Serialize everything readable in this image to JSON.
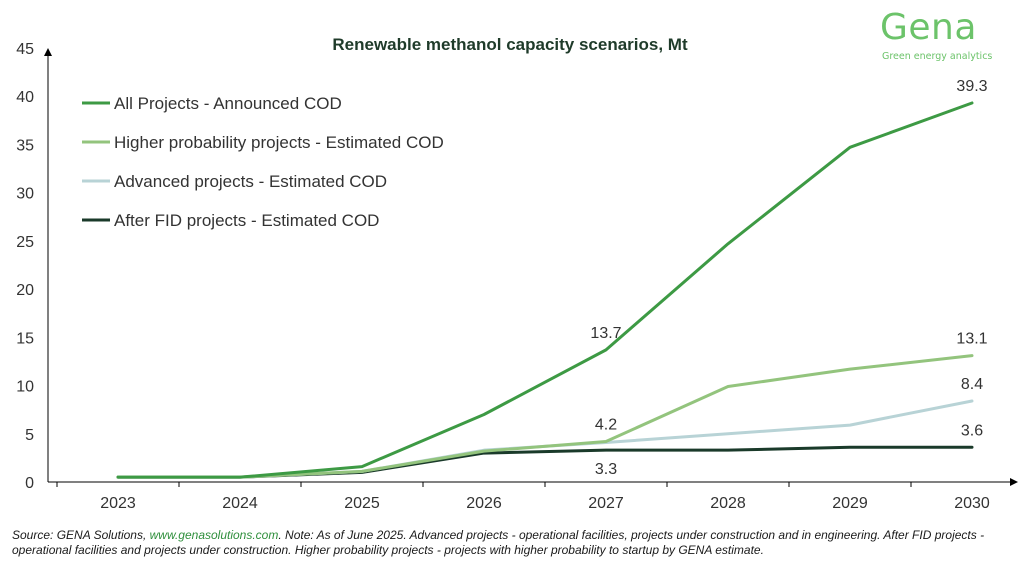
{
  "chart_data": {
    "type": "line",
    "title": "Renewable methanol capacity scenarios, Mt",
    "xlabel": "",
    "ylabel": "",
    "categories": [
      "2023",
      "2024",
      "2025",
      "2026",
      "2027",
      "2028",
      "2029",
      "2030"
    ],
    "ylim": [
      0,
      45
    ],
    "yticks": [
      0,
      5,
      10,
      15,
      20,
      25,
      30,
      35,
      40,
      45
    ],
    "grid": false,
    "legend_position": "top-left",
    "series": [
      {
        "name": "All Projects - Announced COD",
        "color": "#3d9a44",
        "values": [
          0.5,
          0.5,
          1.6,
          7.0,
          13.7,
          24.7,
          34.7,
          39.3
        ]
      },
      {
        "name": "Higher probability projects - Estimated COD",
        "color": "#93c47d",
        "values": [
          0.5,
          0.5,
          1.1,
          3.2,
          4.2,
          9.9,
          11.7,
          13.1
        ]
      },
      {
        "name": "Advanced projects - Estimated COD",
        "color": "#b8d3d6",
        "values": [
          0.5,
          0.5,
          1.1,
          3.3,
          4.1,
          5.0,
          5.9,
          8.4
        ]
      },
      {
        "name": "After FID projects - Estimated COD",
        "color": "#1a3a2a",
        "values": [
          0.5,
          0.5,
          1.0,
          3.0,
          3.3,
          3.3,
          3.6,
          3.6
        ]
      }
    ],
    "annotations": [
      {
        "series": 0,
        "index": 4,
        "text": "13.7",
        "placement": "above"
      },
      {
        "series": 0,
        "index": 7,
        "text": "39.3",
        "placement": "above"
      },
      {
        "series": 1,
        "index": 4,
        "text": "4.2",
        "placement": "above"
      },
      {
        "series": 1,
        "index": 7,
        "text": "13.1",
        "placement": "above"
      },
      {
        "series": 2,
        "index": 7,
        "text": "8.4",
        "placement": "above"
      },
      {
        "series": 3,
        "index": 4,
        "text": "3.3",
        "placement": "below"
      },
      {
        "series": 3,
        "index": 7,
        "text": "3.6",
        "placement": "above"
      }
    ]
  },
  "logo": {
    "name": "Gena",
    "tagline": "Green energy analytics"
  },
  "footer": {
    "prefix": "Source: GENA Solutions, ",
    "link": "www.genasolutions.com",
    "text": ". Note: As of June 2025. Advanced projects - operational facilities, projects under construction and in engineering. After FID projects - operational facilities and projects under construction. Higher probability projects - projects with higher probability to startup by GENA estimate."
  }
}
